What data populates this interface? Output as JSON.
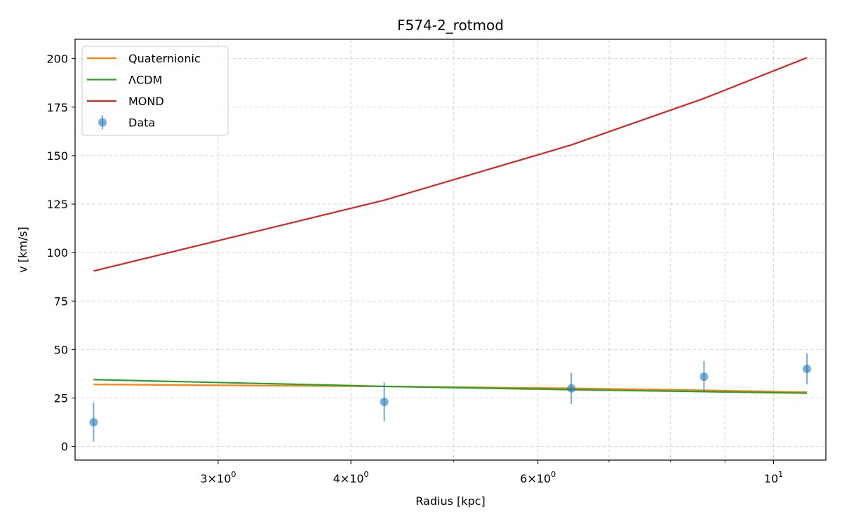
{
  "chart_data": {
    "type": "line",
    "title": "F574-2_rotmod",
    "xlabel": "Radius [kpc]",
    "ylabel": "v [km/s]",
    "xscale": "log",
    "xlim": [
      2.2,
      11.2
    ],
    "ylim": [
      -7,
      210
    ],
    "x_ticks": [
      {
        "value": 3,
        "base": "3×10",
        "exp": "0"
      },
      {
        "value": 4,
        "base": "4×10",
        "exp": "0"
      },
      {
        "value": 6,
        "base": "6×10",
        "exp": "0"
      },
      {
        "value": 10,
        "base": "10",
        "exp": "1"
      }
    ],
    "x_minor_ticks": [
      5,
      7,
      8,
      9
    ],
    "y_ticks": [
      0,
      25,
      50,
      75,
      100,
      125,
      150,
      175,
      200
    ],
    "grid": true,
    "legend_position": "top-left",
    "series": [
      {
        "name": "Quaternionic",
        "kind": "line",
        "color": "#ff7f0e",
        "x": [
          2.29,
          4.3,
          6.45,
          8.6,
          10.75
        ],
        "y": [
          32,
          31,
          30,
          29,
          28
        ]
      },
      {
        "name": "ΛCDM",
        "kind": "line",
        "color": "#2ca02c",
        "x": [
          2.29,
          4.3,
          6.45,
          8.6,
          10.75
        ],
        "y": [
          34.5,
          31,
          29.3,
          28.3,
          27.5
        ]
      },
      {
        "name": "MOND",
        "kind": "line",
        "color": "#d62728",
        "x": [
          2.29,
          4.3,
          6.45,
          8.6,
          10.75
        ],
        "y": [
          90.5,
          127,
          155.5,
          179.5,
          200.5
        ]
      },
      {
        "name": "Data",
        "kind": "errorbar",
        "color": "#1f77b4",
        "x": [
          2.29,
          4.3,
          6.45,
          8.6,
          10.75
        ],
        "y": [
          12.5,
          23,
          30,
          36,
          40
        ],
        "yerr": [
          10,
          10,
          8,
          8,
          8
        ]
      }
    ]
  }
}
